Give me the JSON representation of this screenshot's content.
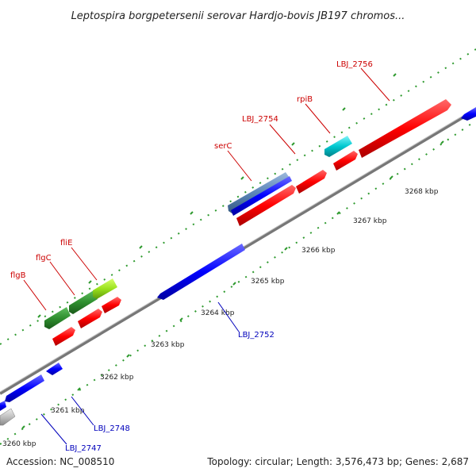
{
  "title": "Leptospira borgpetersenii serovar Hardjo-bovis JB197 chromos...",
  "footer": {
    "accession": "Accession: NC_008510",
    "summary": "Topology: circular; Length: 3,576,473 bp; Genes: 2,687"
  },
  "ticks": [
    "3260 kbp",
    "3261 kbp",
    "3262 kbp",
    "3263 kbp",
    "3264 kbp",
    "3265 kbp",
    "3266 kbp",
    "3267 kbp",
    "3268 kbp"
  ],
  "labels_red": [
    "flgB",
    "flgC",
    "fliE",
    "serC",
    "LBJ_2754",
    "rpiB",
    "LBJ_2756"
  ],
  "labels_blue": [
    "LBJ_2747",
    "LBJ_2748",
    "LBJ_2752"
  ],
  "colors": {
    "forward_cds": "#ff0000",
    "reverse_cds": "#0000ff",
    "flagellar": "#2f8f2f",
    "fliE": "#9be21d",
    "rpiB": "#00c8d0",
    "serC": "#5b85b8",
    "pseudo": "#c0c0c0",
    "backbone": "#888888",
    "tick_dots": "#2e9a2e",
    "label_red": "#cc0000",
    "label_blue": "#0000bb"
  }
}
